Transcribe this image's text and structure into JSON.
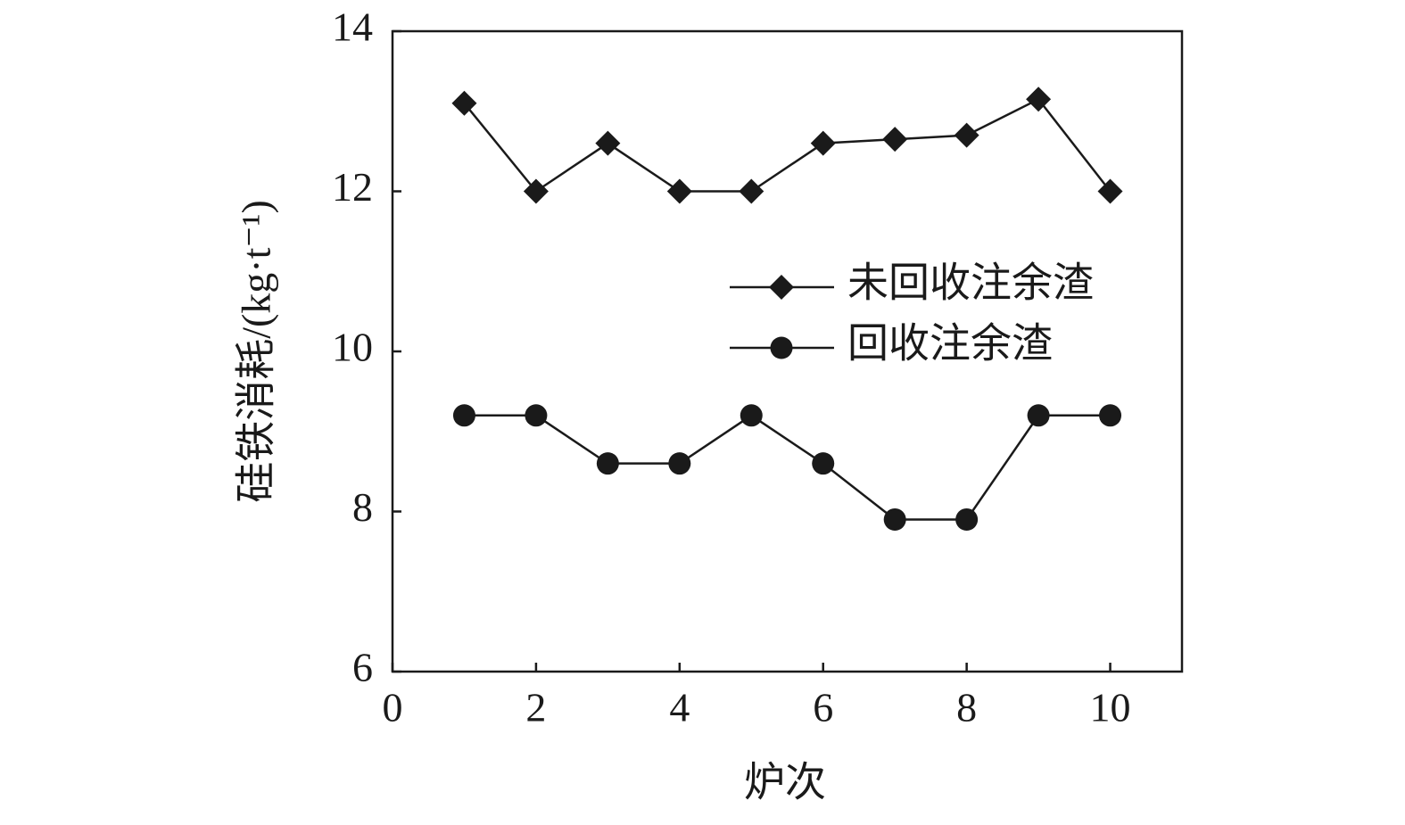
{
  "chart_data": {
    "type": "line",
    "xlabel": "炉次",
    "ylabel": "硅铁消耗/(kg·t⁻¹)",
    "x": [
      1,
      2,
      3,
      4,
      5,
      6,
      7,
      8,
      9,
      10
    ],
    "series": [
      {
        "name": "未回收注余渣",
        "color": "#1a1a1a",
        "marker": "diamond",
        "values": [
          13.1,
          12.0,
          12.6,
          12.0,
          12.0,
          12.6,
          12.65,
          12.7,
          13.15,
          12.0
        ]
      },
      {
        "name": "回收注余渣",
        "color": "#1a1a1a",
        "marker": "circle",
        "values": [
          9.2,
          9.2,
          8.6,
          8.6,
          9.2,
          8.6,
          7.9,
          7.9,
          9.2,
          9.2
        ]
      }
    ],
    "xlim": [
      0,
      11
    ],
    "xticks": [
      0,
      2,
      4,
      6,
      8,
      10
    ],
    "ylim": [
      6,
      14
    ],
    "yticks": [
      6,
      8,
      10,
      12,
      14
    ],
    "grid": false,
    "legend": "right"
  }
}
